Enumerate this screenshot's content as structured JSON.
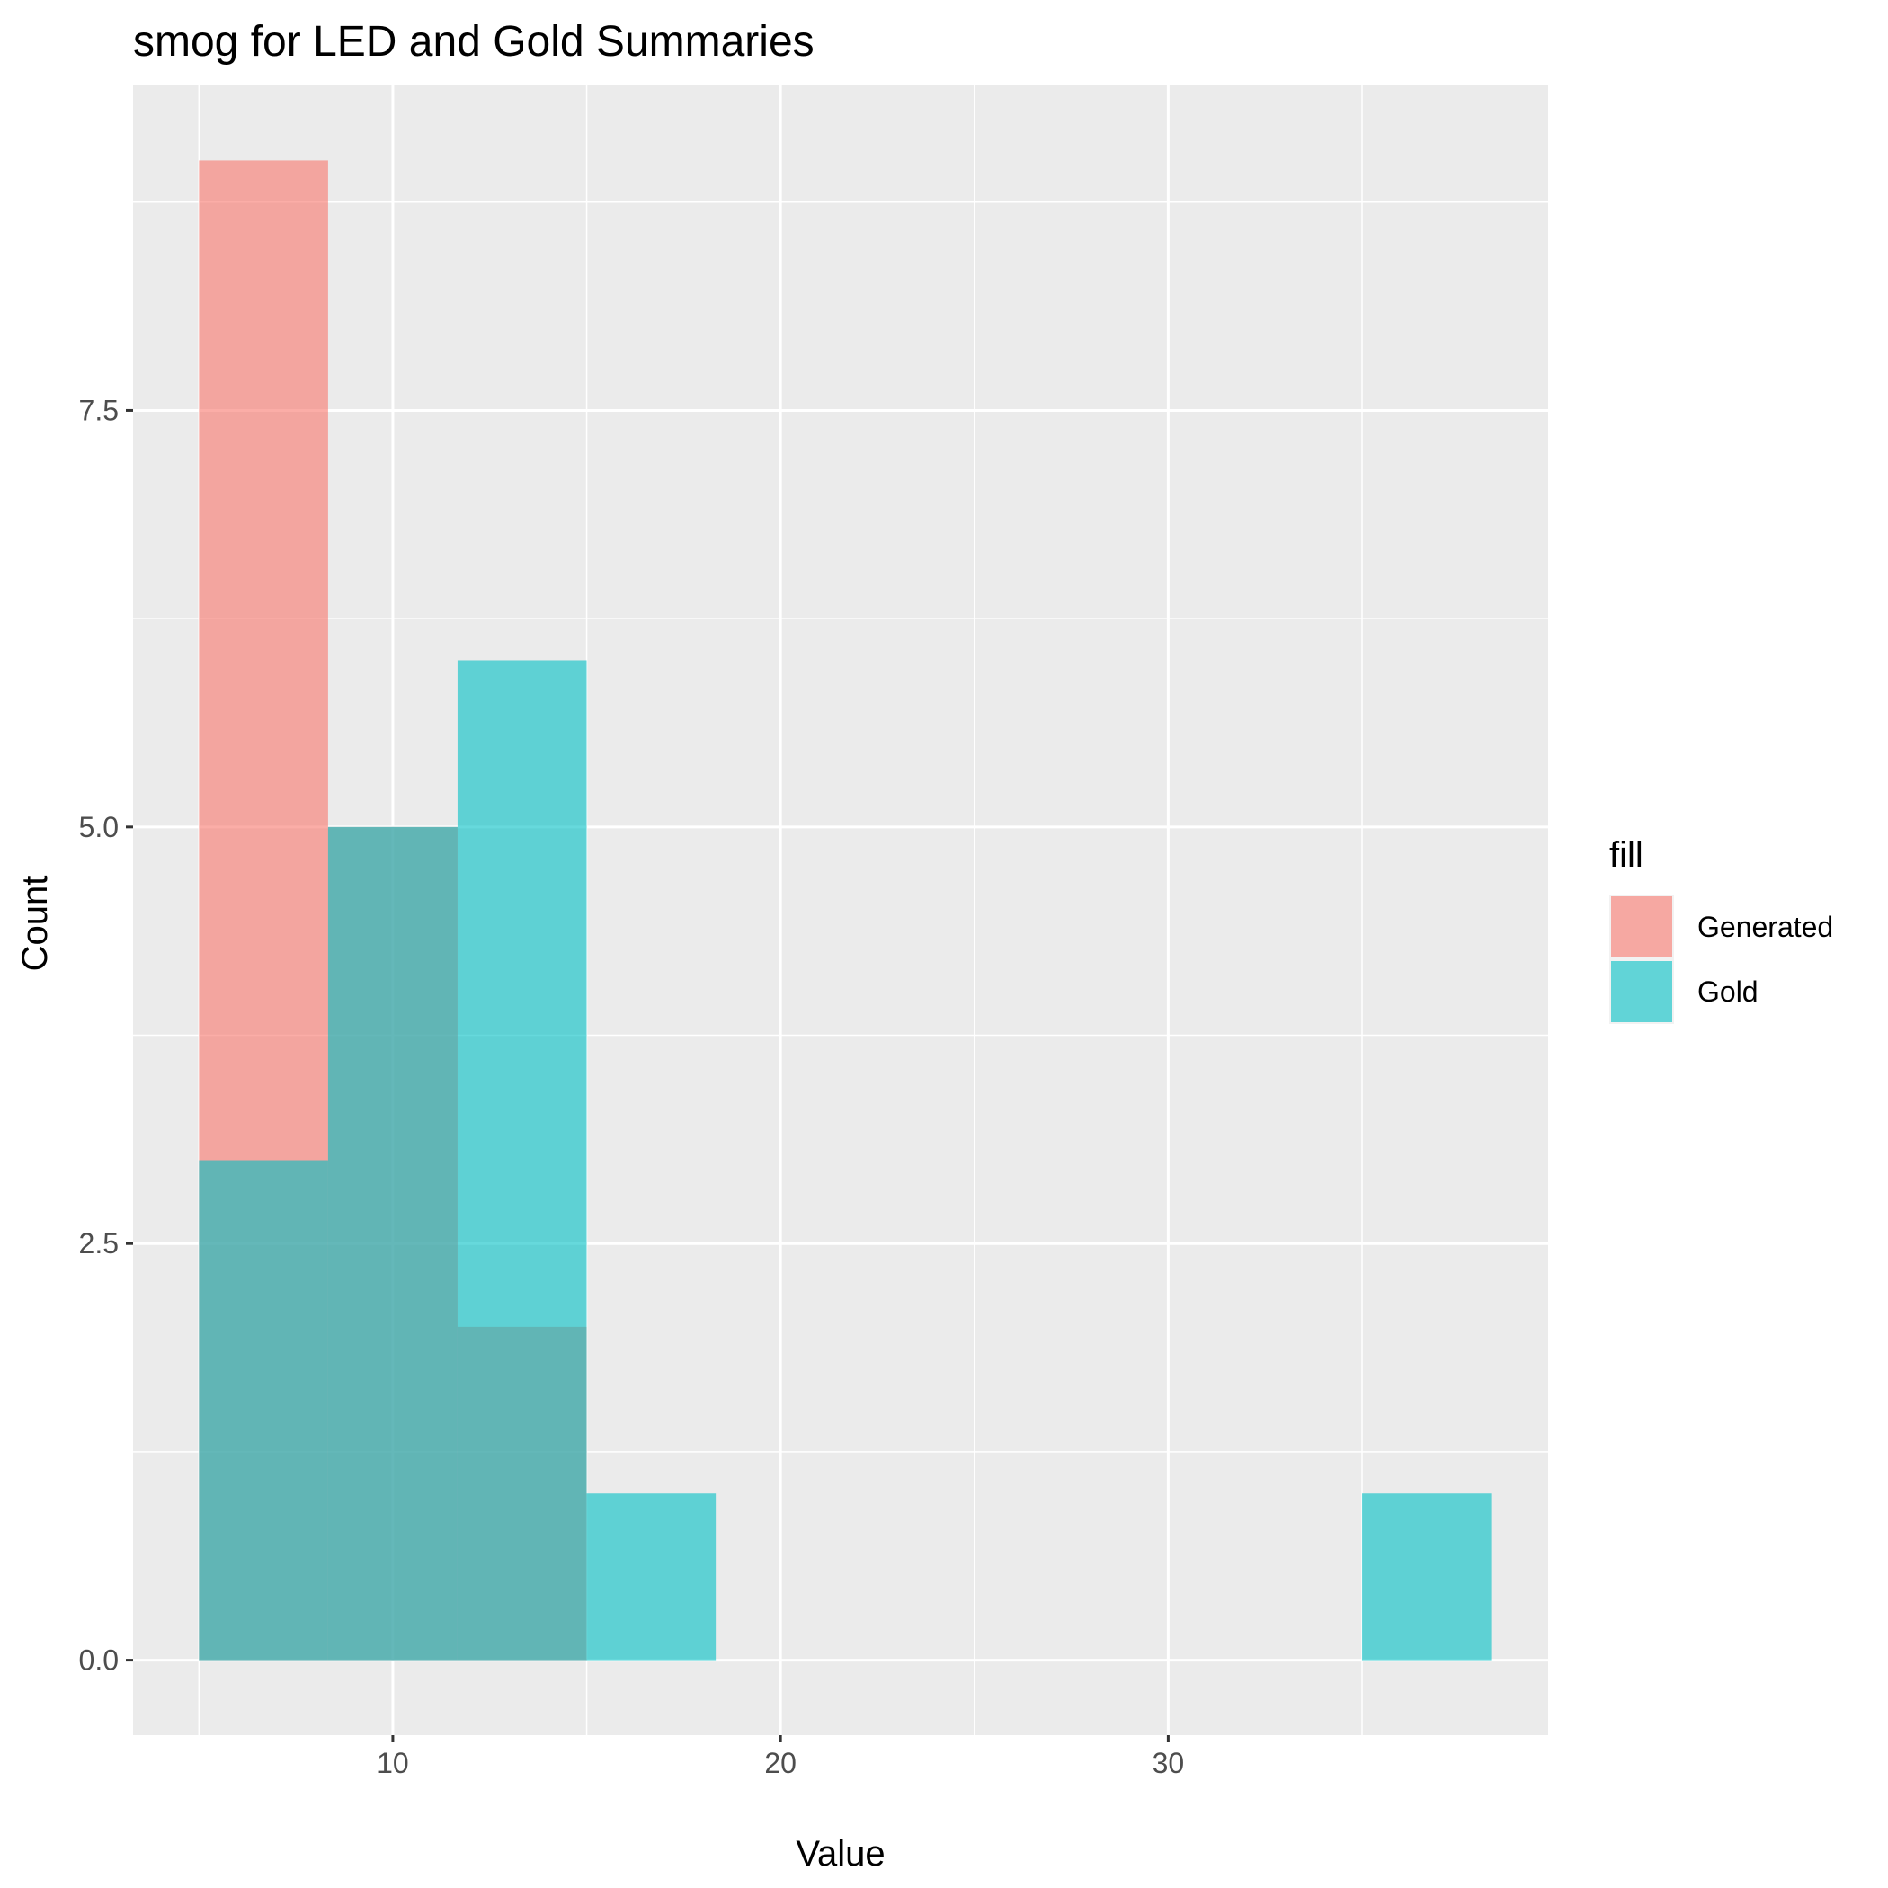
{
  "chart_data": {
    "type": "bar",
    "subtype": "histogram",
    "title": "smog for LED and Gold Summaries",
    "xlabel": "Value",
    "ylabel": "Count",
    "xlim": [
      3.3,
      39.8
    ],
    "ylim": [
      -0.45,
      9.45
    ],
    "x_ticks": [
      10,
      20,
      30
    ],
    "x_tick_labels": [
      "10",
      "20",
      "30"
    ],
    "y_ticks": [
      0,
      2.5,
      5,
      7.5
    ],
    "y_tick_labels": [
      "0.0",
      "2.5",
      "5.0",
      "7.5"
    ],
    "grid": true,
    "legend_position": "right",
    "legend_title": "fill",
    "bin_edges": [
      5.0,
      8.33,
      11.67,
      15.0,
      18.33,
      21.67,
      25.0,
      28.33,
      31.67,
      35.0,
      38.33
    ],
    "series": [
      {
        "name": "Generated",
        "color": "#F8766D",
        "values": [
          9,
          5,
          2,
          0,
          0,
          0,
          0,
          0,
          0,
          0
        ]
      },
      {
        "name": "Gold",
        "color": "#00BFC4",
        "values": [
          3,
          5,
          6,
          1,
          0,
          0,
          0,
          0,
          0,
          1
        ]
      }
    ]
  }
}
